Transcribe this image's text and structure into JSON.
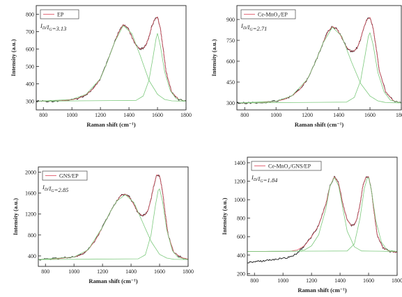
{
  "chart_data": [
    {
      "type": "line",
      "legend": "EP",
      "ratio": {
        "prefix": "I",
        "sub1": "D",
        "sep": "/I",
        "sub2": "G",
        "value": "=3.13"
      },
      "xlabel": "Raman shift (cm⁻¹)",
      "ylabel": "Intensity (a.u.)",
      "xlim": [
        750,
        1800
      ],
      "ylim": [
        250,
        850
      ],
      "xticks": [
        800,
        1000,
        1200,
        1400,
        1600,
        1800
      ],
      "yticks": [
        300,
        400,
        500,
        600,
        700,
        800
      ],
      "series": [
        {
          "role": "raw",
          "x": [
            750,
            800,
            900,
            1000,
            1050,
            1100,
            1150,
            1200,
            1250,
            1300,
            1330,
            1360,
            1390,
            1420,
            1450,
            1480,
            1500,
            1520,
            1540,
            1560,
            1580,
            1600,
            1620,
            1640,
            1660,
            1700,
            1750,
            1800
          ],
          "y": [
            300,
            300,
            302,
            308,
            318,
            338,
            372,
            430,
            530,
            640,
            700,
            740,
            725,
            670,
            620,
            600,
            605,
            625,
            670,
            730,
            770,
            785,
            720,
            600,
            470,
            350,
            310,
            300
          ]
        },
        {
          "role": "fit",
          "x": [
            750,
            800,
            900,
            1000,
            1050,
            1100,
            1150,
            1200,
            1250,
            1300,
            1330,
            1360,
            1390,
            1420,
            1450,
            1480,
            1500,
            1520,
            1540,
            1560,
            1580,
            1600,
            1620,
            1640,
            1660,
            1700,
            1750,
            1800
          ],
          "y": [
            300,
            300,
            302,
            308,
            318,
            338,
            372,
            430,
            530,
            640,
            700,
            740,
            725,
            670,
            620,
            600,
            605,
            625,
            670,
            730,
            770,
            785,
            720,
            600,
            470,
            350,
            310,
            300
          ]
        },
        {
          "role": "peak",
          "x": [
            750,
            1000,
            1100,
            1200,
            1250,
            1300,
            1360,
            1420,
            1480,
            1540,
            1600,
            1650,
            1700,
            1800
          ],
          "y": [
            300,
            310,
            340,
            430,
            530,
            640,
            735,
            690,
            560,
            420,
            340,
            310,
            302,
            300
          ]
        },
        {
          "role": "peak",
          "x": [
            750,
            1450,
            1500,
            1540,
            1570,
            1590,
            1600,
            1620,
            1650,
            1690,
            1730,
            1800
          ],
          "y": [
            300,
            305,
            330,
            420,
            560,
            660,
            690,
            620,
            470,
            360,
            315,
            300
          ]
        }
      ]
    },
    {
      "type": "line",
      "legend": "Ce-MnO₂/EP",
      "ratio": {
        "prefix": "I",
        "sub1": "D",
        "sep": "/I",
        "sub2": "G",
        "value": "=2.71"
      },
      "xlabel": "Raman shift (cm⁻¹)",
      "ylabel": "Intensity (a.u.)",
      "xlim": [
        750,
        1800
      ],
      "ylim": [
        250,
        1000
      ],
      "xticks": [
        800,
        1000,
        1200,
        1400,
        1600,
        1800
      ],
      "yticks": [
        300,
        450,
        600,
        750,
        900
      ],
      "series": [
        {
          "role": "raw",
          "x": [
            750,
            800,
            900,
            1000,
            1050,
            1100,
            1150,
            1200,
            1250,
            1300,
            1330,
            1360,
            1390,
            1420,
            1450,
            1480,
            1500,
            1520,
            1540,
            1560,
            1580,
            1600,
            1620,
            1640,
            1660,
            1700,
            1750,
            1800
          ],
          "y": [
            300,
            300,
            303,
            312,
            325,
            350,
            395,
            470,
            590,
            730,
            810,
            850,
            830,
            770,
            700,
            670,
            675,
            700,
            760,
            840,
            900,
            915,
            840,
            690,
            530,
            380,
            315,
            300
          ]
        },
        {
          "role": "fit",
          "x": [
            750,
            800,
            900,
            1000,
            1050,
            1100,
            1150,
            1200,
            1250,
            1300,
            1330,
            1360,
            1390,
            1420,
            1450,
            1480,
            1500,
            1520,
            1540,
            1560,
            1580,
            1600,
            1620,
            1640,
            1660,
            1700,
            1750,
            1800
          ],
          "y": [
            300,
            300,
            303,
            312,
            325,
            350,
            395,
            470,
            590,
            730,
            810,
            850,
            830,
            770,
            700,
            670,
            675,
            700,
            760,
            840,
            900,
            915,
            840,
            690,
            530,
            380,
            315,
            300
          ]
        },
        {
          "role": "peak",
          "x": [
            750,
            1000,
            1100,
            1200,
            1250,
            1300,
            1360,
            1420,
            1480,
            1540,
            1600,
            1650,
            1700,
            1800
          ],
          "y": [
            300,
            312,
            350,
            470,
            590,
            730,
            845,
            780,
            600,
            440,
            350,
            315,
            303,
            300
          ]
        },
        {
          "role": "peak",
          "x": [
            750,
            1450,
            1500,
            1540,
            1570,
            1590,
            1600,
            1620,
            1650,
            1690,
            1730,
            1800
          ],
          "y": [
            300,
            306,
            340,
            460,
            650,
            780,
            805,
            720,
            520,
            380,
            320,
            300
          ]
        }
      ]
    },
    {
      "type": "line",
      "legend": "GNS/EP",
      "ratio": {
        "prefix": "I",
        "sub1": "D",
        "sep": "/I",
        "sub2": "G",
        "value": "=2.85"
      },
      "xlabel": "Raman shift (cm⁻¹)",
      "ylabel": "Intensity (a.u.)",
      "xlim": [
        750,
        1800
      ],
      "ylim": [
        200,
        2100
      ],
      "xticks": [
        800,
        1000,
        1200,
        1400,
        1600,
        1800
      ],
      "yticks": [
        400,
        800,
        1200,
        1600,
        2000
      ],
      "series": [
        {
          "role": "raw",
          "x": [
            750,
            800,
            900,
            1000,
            1050,
            1100,
            1150,
            1200,
            1250,
            1300,
            1330,
            1360,
            1390,
            1420,
            1450,
            1480,
            1500,
            1520,
            1540,
            1560,
            1580,
            1600,
            1620,
            1640,
            1660,
            1700,
            1750,
            1800
          ],
          "y": [
            330,
            340,
            350,
            380,
            420,
            520,
            700,
            950,
            1220,
            1450,
            1560,
            1580,
            1520,
            1380,
            1220,
            1170,
            1190,
            1280,
            1480,
            1750,
            1950,
            1930,
            1650,
            1200,
            800,
            470,
            370,
            340
          ]
        },
        {
          "role": "fit",
          "x": [
            750,
            800,
            900,
            1000,
            1050,
            1100,
            1150,
            1200,
            1250,
            1300,
            1330,
            1360,
            1390,
            1420,
            1450,
            1480,
            1500,
            1520,
            1540,
            1560,
            1580,
            1600,
            1620,
            1640,
            1660,
            1700,
            1750,
            1800
          ],
          "y": [
            330,
            340,
            350,
            380,
            420,
            520,
            700,
            950,
            1220,
            1450,
            1560,
            1580,
            1520,
            1380,
            1220,
            1170,
            1190,
            1280,
            1480,
            1750,
            1950,
            1930,
            1650,
            1200,
            800,
            470,
            370,
            340
          ]
        },
        {
          "role": "peak",
          "x": [
            750,
            1000,
            1100,
            1200,
            1250,
            1300,
            1360,
            1420,
            1480,
            1540,
            1600,
            1650,
            1700,
            1800
          ],
          "y": [
            330,
            380,
            520,
            950,
            1220,
            1450,
            1570,
            1420,
            1050,
            680,
            430,
            360,
            335,
            330
          ]
        },
        {
          "role": "peak",
          "x": [
            750,
            1450,
            1500,
            1540,
            1570,
            1590,
            1600,
            1620,
            1650,
            1690,
            1730,
            1800
          ],
          "y": [
            330,
            345,
            420,
            800,
            1350,
            1650,
            1680,
            1450,
            900,
            500,
            370,
            330
          ]
        }
      ]
    },
    {
      "type": "line",
      "legend": "Ce-MnO₂/GNS/EP",
      "ratio": {
        "prefix": "I",
        "sub1": "D",
        "sep": "/I",
        "sub2": "G",
        "value": "=1.84"
      },
      "xlabel": "Raman shift (cm⁻¹)",
      "ylabel": "Intensity (a.u.)",
      "xlim": [
        750,
        1800
      ],
      "ylim": [
        180,
        1460
      ],
      "xticks": [
        800,
        1000,
        1200,
        1400,
        1600,
        1800
      ],
      "yticks": [
        200,
        400,
        600,
        800,
        1000,
        1200,
        1400
      ],
      "series": [
        {
          "role": "raw",
          "x": [
            750,
            800,
            850,
            900,
            950,
            1000,
            1050,
            1100,
            1150,
            1200,
            1250,
            1300,
            1330,
            1360,
            1390,
            1420,
            1450,
            1480,
            1500,
            1520,
            1540,
            1560,
            1580,
            1600,
            1620,
            1640,
            1660,
            1700,
            1750,
            1800
          ],
          "y": [
            320,
            330,
            335,
            345,
            355,
            365,
            380,
            420,
            500,
            600,
            720,
            950,
            1150,
            1250,
            1180,
            950,
            780,
            720,
            730,
            800,
            950,
            1150,
            1240,
            1250,
            1100,
            850,
            620,
            480,
            440,
            430
          ]
        },
        {
          "role": "fit",
          "x": [
            750,
            800,
            900,
            1000,
            1050,
            1100,
            1150,
            1200,
            1250,
            1300,
            1330,
            1360,
            1390,
            1420,
            1450,
            1480,
            1500,
            1520,
            1540,
            1560,
            1580,
            1600,
            1620,
            1640,
            1660,
            1700,
            1750,
            1800
          ],
          "y": [
            440,
            440,
            440,
            440,
            442,
            455,
            500,
            600,
            720,
            950,
            1150,
            1250,
            1180,
            950,
            780,
            720,
            730,
            800,
            950,
            1150,
            1240,
            1250,
            1100,
            850,
            620,
            480,
            440,
            430
          ]
        },
        {
          "role": "peak",
          "x": [
            750,
            1100,
            1150,
            1200,
            1250,
            1300,
            1330,
            1360,
            1390,
            1420,
            1450,
            1500,
            1550,
            1800
          ],
          "y": [
            440,
            442,
            455,
            500,
            620,
            900,
            1150,
            1240,
            1150,
            900,
            660,
            490,
            445,
            440
          ]
        },
        {
          "role": "peak",
          "x": [
            750,
            1450,
            1500,
            1540,
            1570,
            1590,
            1600,
            1620,
            1650,
            1690,
            1730,
            1800
          ],
          "y": [
            440,
            445,
            520,
            800,
            1120,
            1230,
            1240,
            1100,
            780,
            540,
            455,
            440
          ]
        }
      ]
    }
  ]
}
